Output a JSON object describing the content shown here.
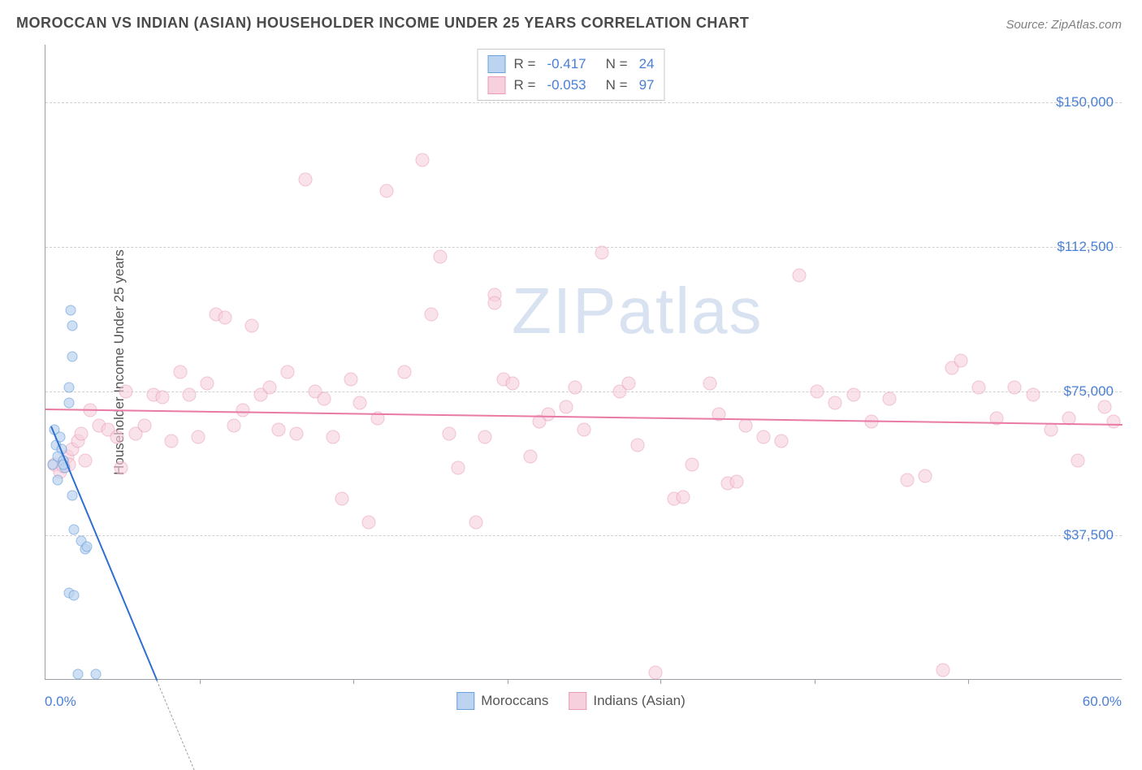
{
  "title": "MOROCCAN VS INDIAN (ASIAN) HOUSEHOLDER INCOME UNDER 25 YEARS CORRELATION CHART",
  "source": "Source: ZipAtlas.com",
  "watermark_zip": "ZIP",
  "watermark_atlas": "atlas",
  "chart": {
    "type": "scatter",
    "background_color": "#ffffff",
    "grid_color": "#d0d0d0",
    "axis_color": "#9aa0a6",
    "tick_label_color": "#4a7fd6",
    "text_color": "#555555",
    "ylim": [
      0,
      165000
    ],
    "xlim": [
      0,
      60
    ],
    "y_ticks": [
      {
        "value": 37500,
        "label": "$37,500"
      },
      {
        "value": 75000,
        "label": "$75,000"
      },
      {
        "value": 112500,
        "label": "$112,500"
      },
      {
        "value": 150000,
        "label": "$150,000"
      }
    ],
    "x_min_label": "0.0%",
    "x_max_label": "60.0%",
    "x_tick_positions_pct": [
      14.3,
      28.6,
      42.9,
      57.1,
      71.4,
      85.7
    ],
    "y_axis_title": "Householder Income Under 25 years",
    "series": [
      {
        "name": "Moroccans",
        "marker_size": 13,
        "fill": "#bcd4f0",
        "fill_opacity": 0.7,
        "stroke": "#6aa0dd",
        "trend_color": "#2f6fd0",
        "trend": {
          "x1": 0.3,
          "y1": 66000,
          "x2": 6.2,
          "y2": 0
        },
        "trend_dash_extend": {
          "x1": 6.2,
          "y1": 0,
          "x2": 8.5,
          "y2": -25000
        }
      },
      {
        "name": "Indians (Asian)",
        "marker_size": 17,
        "fill": "#f7d0dd",
        "fill_opacity": 0.6,
        "stroke": "#e89ab7",
        "trend_color": "#e97aa4",
        "trend": {
          "x1": 0,
          "y1": 70500,
          "x2": 60,
          "y2": 66500
        }
      }
    ],
    "series_a_points": [
      [
        0.5,
        65000
      ],
      [
        0.6,
        61000
      ],
      [
        0.8,
        63000
      ],
      [
        0.9,
        60000
      ],
      [
        0.7,
        58000
      ],
      [
        1.0,
        57000
      ],
      [
        1.1,
        55000
      ],
      [
        1.0,
        56000
      ],
      [
        1.3,
        72000
      ],
      [
        1.3,
        76000
      ],
      [
        1.4,
        96000
      ],
      [
        1.5,
        92000
      ],
      [
        1.5,
        84000
      ],
      [
        0.7,
        52000
      ],
      [
        0.4,
        56000
      ],
      [
        1.5,
        48000
      ],
      [
        1.6,
        39000
      ],
      [
        2.0,
        36000
      ],
      [
        2.2,
        34000
      ],
      [
        2.3,
        34500
      ],
      [
        1.3,
        22500
      ],
      [
        1.6,
        22000
      ],
      [
        1.8,
        1500
      ],
      [
        2.8,
        1500
      ]
    ],
    "series_b_points": [
      [
        0.5,
        56000
      ],
      [
        0.8,
        54000
      ],
      [
        1.0,
        55500
      ],
      [
        1.2,
        58000
      ],
      [
        1.5,
        60000
      ],
      [
        1.8,
        62000
      ],
      [
        2.0,
        64000
      ],
      [
        1.3,
        56000
      ],
      [
        2.2,
        57000
      ],
      [
        2.5,
        70000
      ],
      [
        3.0,
        66000
      ],
      [
        3.5,
        65000
      ],
      [
        4.0,
        63000
      ],
      [
        4.2,
        55000
      ],
      [
        4.5,
        75000
      ],
      [
        5.0,
        64000
      ],
      [
        5.5,
        66000
      ],
      [
        6.0,
        74000
      ],
      [
        6.5,
        73500
      ],
      [
        7.0,
        62000
      ],
      [
        7.5,
        80000
      ],
      [
        8.0,
        74000
      ],
      [
        8.5,
        63000
      ],
      [
        9.0,
        77000
      ],
      [
        9.5,
        95000
      ],
      [
        10,
        94000
      ],
      [
        10.5,
        66000
      ],
      [
        11,
        70000
      ],
      [
        11.5,
        92000
      ],
      [
        12,
        74000
      ],
      [
        12.5,
        76000
      ],
      [
        13,
        65000
      ],
      [
        13.5,
        80000
      ],
      [
        14,
        64000
      ],
      [
        14.5,
        130000
      ],
      [
        15,
        75000
      ],
      [
        15.5,
        73000
      ],
      [
        16,
        63000
      ],
      [
        16.5,
        47000
      ],
      [
        17,
        78000
      ],
      [
        17.5,
        72000
      ],
      [
        18,
        41000
      ],
      [
        18.5,
        68000
      ],
      [
        19,
        127000
      ],
      [
        20,
        80000
      ],
      [
        21,
        135000
      ],
      [
        21.5,
        95000
      ],
      [
        22,
        110000
      ],
      [
        22.5,
        64000
      ],
      [
        23,
        55000
      ],
      [
        24,
        41000
      ],
      [
        24.5,
        63000
      ],
      [
        25,
        100000
      ],
      [
        25.5,
        78000
      ],
      [
        25,
        98000
      ],
      [
        26,
        77000
      ],
      [
        27,
        58000
      ],
      [
        27.5,
        67000
      ],
      [
        28,
        69000
      ],
      [
        29,
        71000
      ],
      [
        29.5,
        76000
      ],
      [
        30,
        65000
      ],
      [
        31,
        111000
      ],
      [
        32,
        75000
      ],
      [
        32.5,
        77000
      ],
      [
        33,
        61000
      ],
      [
        34,
        2000
      ],
      [
        35,
        47000
      ],
      [
        35.5,
        47500
      ],
      [
        36,
        56000
      ],
      [
        37,
        77000
      ],
      [
        37.5,
        69000
      ],
      [
        38,
        51000
      ],
      [
        38.5,
        51500
      ],
      [
        39,
        66000
      ],
      [
        40,
        63000
      ],
      [
        41,
        62000
      ],
      [
        42,
        105000
      ],
      [
        43,
        75000
      ],
      [
        44,
        72000
      ],
      [
        45,
        74000
      ],
      [
        46,
        67000
      ],
      [
        47,
        73000
      ],
      [
        48,
        52000
      ],
      [
        49,
        53000
      ],
      [
        50,
        2500
      ],
      [
        50.5,
        81000
      ],
      [
        51,
        83000
      ],
      [
        52,
        76000
      ],
      [
        53,
        68000
      ],
      [
        54,
        76000
      ],
      [
        55,
        74000
      ],
      [
        56,
        65000
      ],
      [
        57,
        68000
      ],
      [
        57.5,
        57000
      ],
      [
        59,
        71000
      ],
      [
        59.5,
        67000
      ]
    ]
  },
  "legend_top": [
    {
      "r_label": "R =",
      "r_value": "-0.417",
      "n_label": "N =",
      "n_value": "24",
      "fill": "#bcd4f0",
      "stroke": "#6aa0dd"
    },
    {
      "r_label": "R =",
      "r_value": "-0.053",
      "n_label": "N =",
      "n_value": "97",
      "fill": "#f7d0dd",
      "stroke": "#e89ab7"
    }
  ],
  "legend_bottom": [
    {
      "label": "Moroccans",
      "fill": "#bcd4f0",
      "stroke": "#6aa0dd"
    },
    {
      "label": "Indians (Asian)",
      "fill": "#f7d0dd",
      "stroke": "#e89ab7"
    }
  ]
}
